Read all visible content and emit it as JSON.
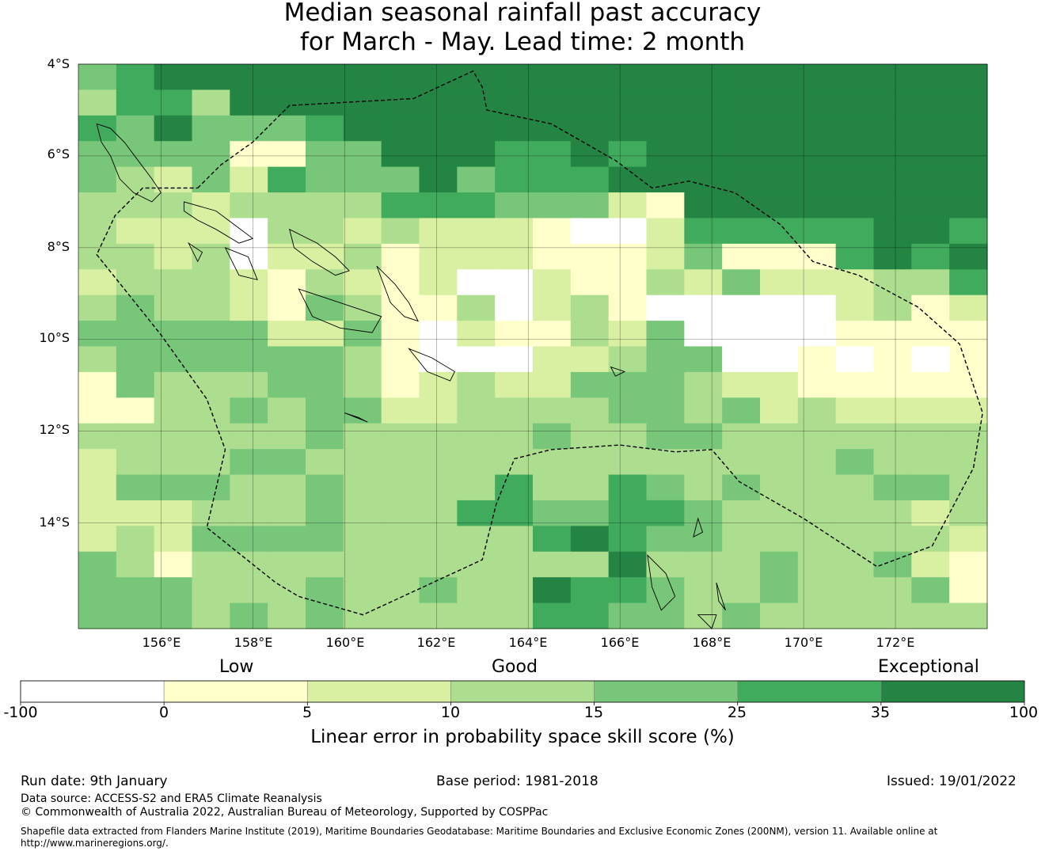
{
  "title": {
    "line1": "Median seasonal rainfall past accuracy",
    "line2": "for March - May. Lead time: 2 month"
  },
  "map": {
    "lon_range": [
      154.2,
      174.0
    ],
    "lat_range": [
      -16.3,
      -4.0
    ],
    "grid_cell_deg": 0.83,
    "lat_labels": [
      "4°S",
      "6°S",
      "8°S",
      "10°S",
      "12°S",
      "14°S"
    ],
    "lat_values": [
      -4,
      -6,
      -8,
      -10,
      -12,
      -14
    ],
    "lon_labels": [
      "156°E",
      "158°E",
      "160°E",
      "162°E",
      "164°E",
      "166°E",
      "168°E",
      "170°E",
      "172°E"
    ],
    "lon_values": [
      156,
      158,
      160,
      162,
      164,
      166,
      168,
      170,
      172
    ],
    "skill_grid_category_rows": [
      "456666666666666666666666",
      "355366666666666666666666",
      "546444566666666666666666",
      "444411446665565666666666",
      "432425444645556666666666",
      "333233335554442166666666",
      "322203323222100255555665",
      "332302231222111241115656",
      "233321321200211324222335",
      "343321431130231000002312",
      "444442241021132400001111",
      "344444431000223440010101",
      "143334431232244432211111",
      "113343442233334434232222",
      "333333433333433443333333",
      "233344333333333333334333",
      "244433433335335434333443",
      "222333433355445543333323",
      "232444433333565443333332",
      "431333333333336333433421",
      "444333433433655433433341",
      "444343433333554434333333"
    ],
    "eez_boundary_lonlat": [
      [
        156.8,
        -6.7
      ],
      [
        157.3,
        -6.2
      ],
      [
        158.0,
        -5.7
      ],
      [
        158.8,
        -4.9
      ],
      [
        161.5,
        -4.75
      ],
      [
        162.8,
        -4.15
      ],
      [
        163.0,
        -4.5
      ],
      [
        163.1,
        -5.0
      ],
      [
        164.5,
        -5.3
      ],
      [
        165.9,
        -6.1
      ],
      [
        166.7,
        -6.7
      ],
      [
        167.5,
        -6.55
      ],
      [
        168.5,
        -6.8
      ],
      [
        169.5,
        -7.5
      ],
      [
        170.2,
        -8.3
      ],
      [
        171.2,
        -8.6
      ],
      [
        172.5,
        -9.3
      ],
      [
        173.4,
        -10.1
      ],
      [
        173.9,
        -11.6
      ],
      [
        173.7,
        -12.8
      ],
      [
        172.8,
        -14.5
      ],
      [
        171.6,
        -14.95
      ],
      [
        170.0,
        -13.9
      ],
      [
        168.6,
        -13.1
      ],
      [
        168.0,
        -12.4
      ],
      [
        167.2,
        -12.45
      ],
      [
        166.0,
        -12.3
      ],
      [
        164.5,
        -12.4
      ],
      [
        163.7,
        -12.6
      ],
      [
        163.3,
        -13.6
      ],
      [
        163.0,
        -14.8
      ],
      [
        160.4,
        -16.0
      ],
      [
        159.0,
        -15.6
      ],
      [
        158.5,
        -15.3
      ],
      [
        157.0,
        -14.1
      ],
      [
        157.4,
        -12.4
      ],
      [
        157.0,
        -11.3
      ],
      [
        156.0,
        -9.9
      ],
      [
        154.6,
        -8.15
      ],
      [
        155.0,
        -7.3
      ],
      [
        155.6,
        -6.7
      ],
      [
        156.8,
        -6.7
      ]
    ],
    "coastlines_lonlat": [
      [
        [
          154.6,
          -5.3
        ],
        [
          154.9,
          -5.4
        ],
        [
          155.2,
          -5.7
        ],
        [
          155.5,
          -6.1
        ],
        [
          155.8,
          -6.5
        ],
        [
          156.0,
          -6.8
        ],
        [
          155.8,
          -7.0
        ],
        [
          155.4,
          -6.8
        ],
        [
          155.1,
          -6.5
        ],
        [
          154.9,
          -6.0
        ],
        [
          154.7,
          -5.7
        ],
        [
          154.6,
          -5.3
        ]
      ],
      [
        [
          156.5,
          -7.0
        ],
        [
          157.2,
          -7.2
        ],
        [
          157.6,
          -7.5
        ],
        [
          158.0,
          -7.8
        ],
        [
          157.7,
          -7.9
        ],
        [
          157.2,
          -7.6
        ],
        [
          156.8,
          -7.4
        ],
        [
          156.5,
          -7.2
        ],
        [
          156.5,
          -7.0
        ]
      ],
      [
        [
          158.8,
          -7.6
        ],
        [
          159.4,
          -7.9
        ],
        [
          159.8,
          -8.2
        ],
        [
          160.1,
          -8.5
        ],
        [
          159.8,
          -8.6
        ],
        [
          159.3,
          -8.3
        ],
        [
          158.9,
          -8.0
        ],
        [
          158.8,
          -7.6
        ]
      ],
      [
        [
          159.0,
          -8.9
        ],
        [
          159.6,
          -9.1
        ],
        [
          160.2,
          -9.3
        ],
        [
          160.8,
          -9.5
        ],
        [
          160.6,
          -9.85
        ],
        [
          159.9,
          -9.75
        ],
        [
          159.3,
          -9.5
        ],
        [
          159.0,
          -8.9
        ]
      ],
      [
        [
          160.7,
          -8.4
        ],
        [
          161.1,
          -8.8
        ],
        [
          161.4,
          -9.2
        ],
        [
          161.6,
          -9.6
        ],
        [
          161.3,
          -9.5
        ],
        [
          161.0,
          -9.2
        ],
        [
          160.7,
          -8.4
        ]
      ],
      [
        [
          161.4,
          -10.2
        ],
        [
          161.9,
          -10.4
        ],
        [
          162.4,
          -10.7
        ],
        [
          162.3,
          -10.9
        ],
        [
          161.8,
          -10.7
        ],
        [
          161.4,
          -10.2
        ]
      ],
      [
        [
          157.4,
          -8.0
        ],
        [
          157.9,
          -8.2
        ],
        [
          158.1,
          -8.7
        ],
        [
          157.7,
          -8.6
        ],
        [
          157.4,
          -8.0
        ]
      ],
      [
        [
          156.6,
          -7.9
        ],
        [
          156.9,
          -8.1
        ],
        [
          156.8,
          -8.3
        ],
        [
          156.6,
          -7.9
        ]
      ],
      [
        [
          166.6,
          -14.7
        ],
        [
          167.0,
          -15.1
        ],
        [
          167.2,
          -15.6
        ],
        [
          166.9,
          -15.9
        ],
        [
          166.7,
          -15.4
        ],
        [
          166.6,
          -14.7
        ]
      ],
      [
        [
          167.7,
          -16.0
        ],
        [
          168.0,
          -16.3
        ],
        [
          168.1,
          -16.0
        ],
        [
          167.7,
          -16.0
        ]
      ],
      [
        [
          168.1,
          -15.3
        ],
        [
          168.2,
          -15.6
        ],
        [
          168.3,
          -15.9
        ],
        [
          168.15,
          -15.7
        ],
        [
          168.1,
          -15.3
        ]
      ],
      [
        [
          167.7,
          -13.9
        ],
        [
          167.8,
          -14.2
        ],
        [
          167.6,
          -14.3
        ],
        [
          167.7,
          -13.9
        ]
      ],
      [
        [
          165.8,
          -10.6
        ],
        [
          166.1,
          -10.7
        ],
        [
          165.9,
          -10.8
        ],
        [
          165.8,
          -10.6
        ]
      ],
      [
        [
          160.0,
          -11.6
        ],
        [
          160.5,
          -11.8
        ],
        [
          160.3,
          -11.7
        ],
        [
          160.0,
          -11.6
        ]
      ]
    ]
  },
  "colorbar": {
    "category_labels": [
      "Low",
      "Good",
      "Exceptional"
    ],
    "tick_labels": [
      "-100",
      "0",
      "5",
      "10",
      "15",
      "25",
      "35",
      "100"
    ],
    "title": "Linear error in probability space skill score (%)",
    "colors": [
      "#ffffff",
      "#ffffcc",
      "#d9f0a3",
      "#addd8e",
      "#78c679",
      "#41ab5d",
      "#238443"
    ]
  },
  "footer": {
    "run_date": "Run date: 9th January",
    "base_period": "Base period: 1981-2018",
    "issued": "Issued: 19/01/2022",
    "data_source": "Data source: ACCESS-S2 and ERA5 Climate Reanalysis",
    "copyright": "© Commonwealth of Australia 2022, Australian Bureau of Meteorology, Supported by COSPPac",
    "shapefile_line1": "Shapefile data extracted from Flanders Marine Institute (2019), Maritime Boundaries Geodatabase: Maritime Boundaries and Exclusive Economic Zones (200NM), version 11. Available online at",
    "shapefile_line2": "http://www.marineregions.org/."
  }
}
